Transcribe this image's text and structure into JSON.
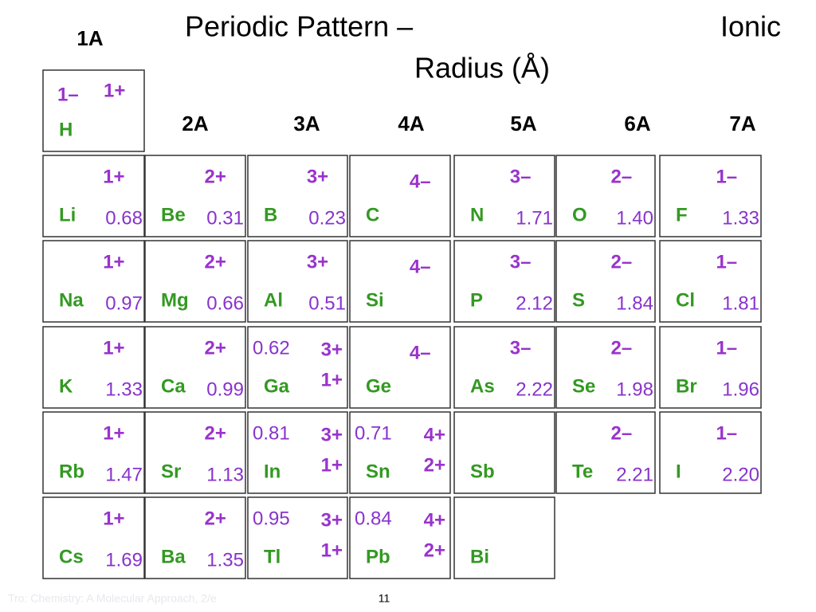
{
  "title": {
    "line1": "Periodic Pattern –",
    "line1_right": "Ionic",
    "line2": "Radius (Å)"
  },
  "groups": [
    "1A",
    "2A",
    "3A",
    "4A",
    "5A",
    "6A",
    "7A"
  ],
  "rows": [
    [
      {
        "symbol": "H",
        "ions": [
          {
            "charge": "1–"
          },
          {
            "charge": "1+"
          }
        ]
      }
    ],
    [
      {
        "symbol": "Li",
        "ions": [
          {
            "charge": "1+",
            "radius": "0.68"
          }
        ]
      },
      {
        "symbol": "Be",
        "ions": [
          {
            "charge": "2+",
            "radius": "0.31"
          }
        ]
      },
      {
        "symbol": "B",
        "ions": [
          {
            "charge": "3+",
            "radius": "0.23"
          }
        ]
      },
      {
        "symbol": "C",
        "ions": [
          {
            "charge": "4–"
          }
        ]
      },
      {
        "symbol": "N",
        "ions": [
          {
            "charge": "3–",
            "radius": "1.71"
          }
        ]
      },
      {
        "symbol": "O",
        "ions": [
          {
            "charge": "2–",
            "radius": "1.40"
          }
        ]
      },
      {
        "symbol": "F",
        "ions": [
          {
            "charge": "1–",
            "radius": "1.33"
          }
        ]
      }
    ],
    [
      {
        "symbol": "Na",
        "ions": [
          {
            "charge": "1+",
            "radius": "0.97"
          }
        ]
      },
      {
        "symbol": "Mg",
        "ions": [
          {
            "charge": "2+",
            "radius": "0.66"
          }
        ]
      },
      {
        "symbol": "Al",
        "ions": [
          {
            "charge": "3+",
            "radius": "0.51"
          }
        ]
      },
      {
        "symbol": "Si",
        "ions": [
          {
            "charge": "4–"
          }
        ]
      },
      {
        "symbol": "P",
        "ions": [
          {
            "charge": "3–",
            "radius": "2.12"
          }
        ]
      },
      {
        "symbol": "S",
        "ions": [
          {
            "charge": "2–",
            "radius": "1.84"
          }
        ]
      },
      {
        "symbol": "Cl",
        "ions": [
          {
            "charge": "1–",
            "radius": "1.81"
          }
        ]
      }
    ],
    [
      {
        "symbol": "K",
        "ions": [
          {
            "charge": "1+",
            "radius": "1.33"
          }
        ]
      },
      {
        "symbol": "Ca",
        "ions": [
          {
            "charge": "2+",
            "radius": "0.99"
          }
        ]
      },
      {
        "symbol": "Ga",
        "ions": [
          {
            "charge": "3+",
            "radius": "0.62"
          },
          {
            "charge": "1+"
          }
        ]
      },
      {
        "symbol": "Ge",
        "ions": [
          {
            "charge": "4–"
          }
        ]
      },
      {
        "symbol": "As",
        "ions": [
          {
            "charge": "3–",
            "radius": "2.22"
          }
        ]
      },
      {
        "symbol": "Se",
        "ions": [
          {
            "charge": "2–",
            "radius": "1.98"
          }
        ]
      },
      {
        "symbol": "Br",
        "ions": [
          {
            "charge": "1–",
            "radius": "1.96"
          }
        ]
      }
    ],
    [
      {
        "symbol": "Rb",
        "ions": [
          {
            "charge": "1+",
            "radius": "1.47"
          }
        ]
      },
      {
        "symbol": "Sr",
        "ions": [
          {
            "charge": "2+",
            "radius": "1.13"
          }
        ]
      },
      {
        "symbol": "In",
        "ions": [
          {
            "charge": "3+",
            "radius": "0.81"
          },
          {
            "charge": "1+"
          }
        ]
      },
      {
        "symbol": "Sn",
        "ions": [
          {
            "charge": "4+",
            "radius": "0.71"
          },
          {
            "charge": "2+"
          }
        ]
      },
      {
        "symbol": "Sb",
        "ions": []
      },
      {
        "symbol": "Te",
        "ions": [
          {
            "charge": "2–",
            "radius": "2.21"
          }
        ]
      },
      {
        "symbol": "I",
        "ions": [
          {
            "charge": "1–",
            "radius": "2.20"
          }
        ]
      }
    ],
    [
      {
        "symbol": "Cs",
        "ions": [
          {
            "charge": "1+",
            "radius": "1.69"
          }
        ]
      },
      {
        "symbol": "Ba",
        "ions": [
          {
            "charge": "2+",
            "radius": "1.35"
          }
        ]
      },
      {
        "symbol": "Tl",
        "ions": [
          {
            "charge": "3+",
            "radius": "0.95"
          },
          {
            "charge": "1+"
          }
        ]
      },
      {
        "symbol": "Pb",
        "ions": [
          {
            "charge": "4+",
            "radius": "0.84"
          },
          {
            "charge": "2+"
          }
        ]
      },
      {
        "symbol": "Bi",
        "ions": []
      }
    ]
  ],
  "footer": {
    "source": "Tro: Chemistry: A Molecular Approach, 2/e",
    "page": "11"
  }
}
